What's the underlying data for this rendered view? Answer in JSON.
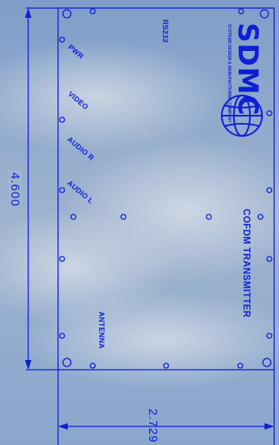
{
  "labels": {
    "rs232": "RS232",
    "pwr": "PWR",
    "video": "VIDEO",
    "audio_r": "AUDIO R",
    "audio_l": "AUDIO L",
    "antenna": "ANTENNA",
    "title": "COFDM TRANSMITTER"
  },
  "dimensions": {
    "height": "4.600",
    "width": "2.729"
  },
  "logo": {
    "wordmark": "SDMC",
    "tagline": "SYSTEMS DESIGN & MANUFACTURING COMPANY"
  },
  "colors": {
    "ink": "#0d1fd6",
    "background": "#8ea8c8"
  }
}
